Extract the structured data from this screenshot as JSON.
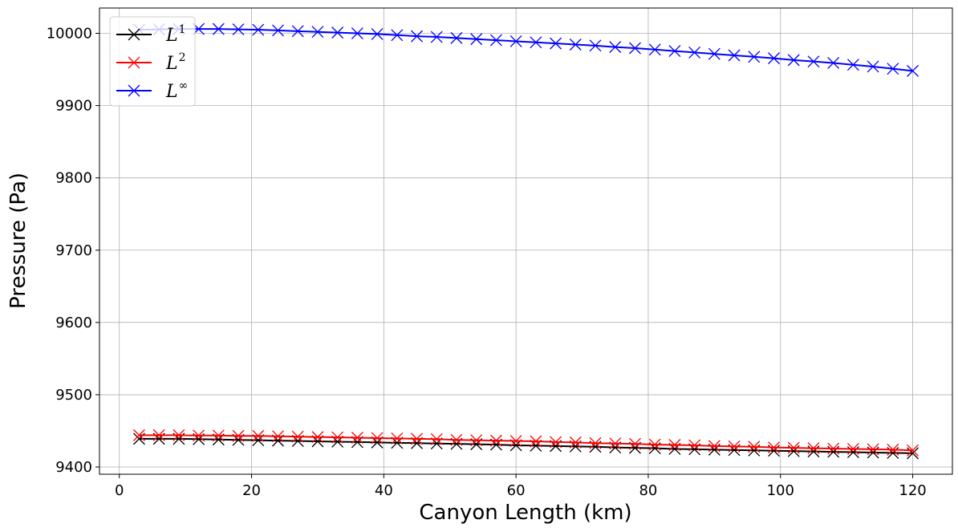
{
  "chart_data": {
    "type": "line",
    "title": "",
    "xlabel": "Canyon Length (km)",
    "ylabel": "Pressure (Pa)",
    "xlim": [
      -3,
      126
    ],
    "ylim": [
      9390,
      10035
    ],
    "xticks": [
      "0",
      "20",
      "40",
      "60",
      "80",
      "100",
      "120"
    ],
    "yticks": [
      "9400",
      "9500",
      "9600",
      "9700",
      "9800",
      "9900",
      "10000"
    ],
    "grid": true,
    "legend_position": "top-left",
    "marker": "x",
    "x": [
      3,
      6,
      9,
      12,
      15,
      18,
      21,
      24,
      27,
      30,
      33,
      36,
      39,
      42,
      45,
      48,
      51,
      54,
      57,
      60,
      63,
      66,
      69,
      72,
      75,
      78,
      81,
      84,
      87,
      90,
      93,
      96,
      99,
      102,
      105,
      108,
      111,
      114,
      117,
      120
    ],
    "series": [
      {
        "name": "L",
        "sup": "1",
        "color": "#000000",
        "values": [
          9439,
          9439,
          9439,
          9438.5,
          9438,
          9437.5,
          9437,
          9436.5,
          9436,
          9435.5,
          9435,
          9434.5,
          9434,
          9433.5,
          9433,
          9432.5,
          9432,
          9431.5,
          9431,
          9430,
          9429.5,
          9429,
          9428.5,
          9428,
          9427,
          9426.5,
          9426,
          9425,
          9424.5,
          9424,
          9423.5,
          9423,
          9422.5,
          9422,
          9421.5,
          9421,
          9420.5,
          9420,
          9419.5,
          9419
        ]
      },
      {
        "name": "L",
        "sup": "2",
        "color": "#ff0000",
        "values": [
          9444,
          9444,
          9444,
          9443.5,
          9443.5,
          9443,
          9443,
          9442.5,
          9442,
          9441.5,
          9441,
          9440.5,
          9440,
          9439.5,
          9439,
          9438.5,
          9437.5,
          9437,
          9436.5,
          9436,
          9435.5,
          9434.5,
          9434,
          9433,
          9432.5,
          9432,
          9431,
          9430.5,
          9430,
          9429,
          9428.5,
          9428,
          9427,
          9426.5,
          9426,
          9425.5,
          9425,
          9424.5,
          9424,
          9423
        ]
      },
      {
        "name": "L",
        "sup": "∞",
        "color": "#0000ff",
        "values": [
          10005,
          10005.5,
          10006,
          10006,
          10006,
          10005.5,
          10005,
          10004,
          10003,
          10002,
          10001,
          10000,
          9999,
          9997.5,
          9996,
          9995,
          9993.5,
          9992,
          9990.5,
          9989,
          9987.5,
          9986,
          9984.5,
          9983,
          9981,
          9979.5,
          9977.5,
          9975.5,
          9973.5,
          9971.5,
          9969.5,
          9967.5,
          9965.5,
          9963,
          9961,
          9959,
          9956.5,
          9954,
          9951,
          9948
        ]
      }
    ]
  }
}
